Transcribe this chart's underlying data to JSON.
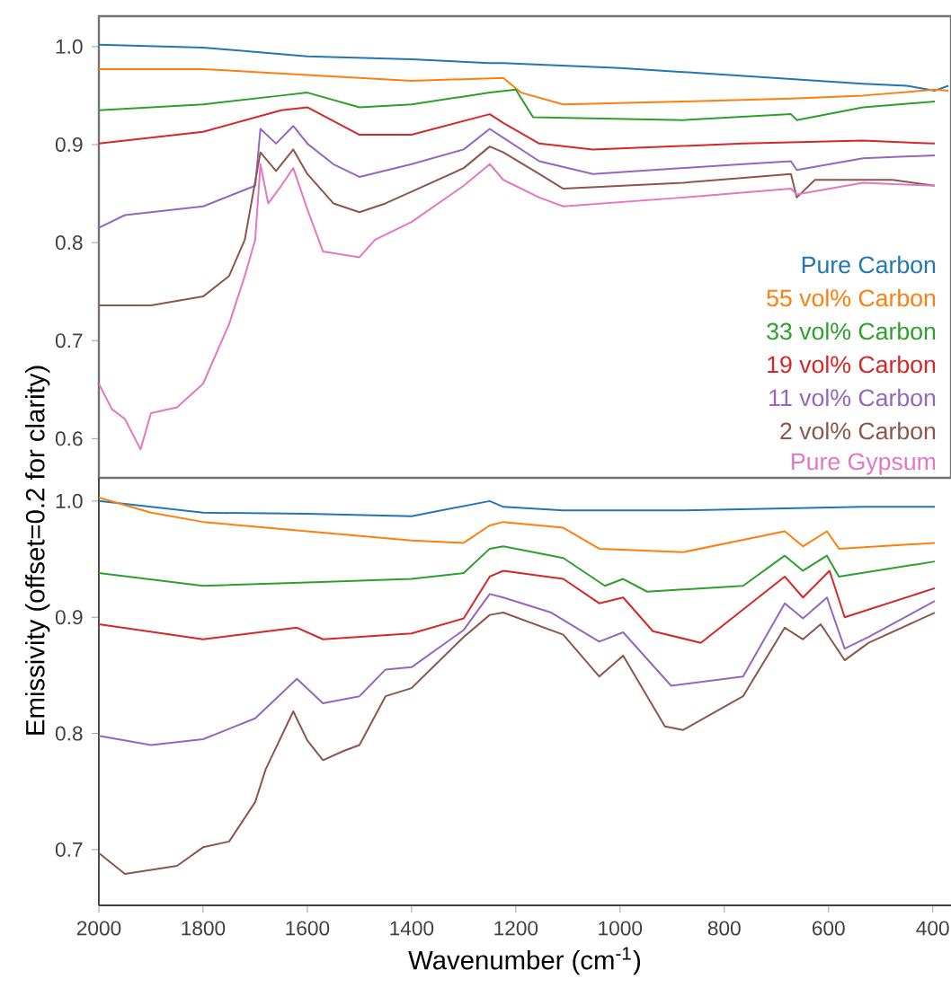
{
  "chart_data": [
    {
      "type": "line",
      "xlim": [
        2000,
        365
      ],
      "ylim": [
        0.56,
        1.031
      ],
      "yticks": [
        0.6,
        0.7,
        0.8,
        0.9,
        {
          "value": 1.0,
          "label": "1.0"
        }
      ],
      "tick_labels": "y",
      "legend": "bottom right",
      "marker": "none",
      "line_style": "solid",
      "series": [
        {
          "name": "Pure Carbon",
          "color": "#1f77b4",
          "x": [
            2000,
            1800,
            1600,
            1400,
            1250,
            1224,
            1000,
            879,
            534,
            450,
            396,
            370
          ],
          "values": [
            1.002,
            0.999,
            0.99,
            0.987,
            0.983,
            0.983,
            0.978,
            0.974,
            0.962,
            0.96,
            0.955,
            0.96
          ]
        },
        {
          "name": "55 vol% Carbon",
          "color": "#ff7f0e",
          "x": [
            2000,
            1800,
            1600,
            1400,
            1224,
            1190,
            1109,
            879,
            672,
            534,
            396,
            370
          ],
          "values": [
            0.977,
            0.977,
            0.971,
            0.965,
            0.968,
            0.953,
            0.941,
            0.944,
            0.947,
            0.95,
            0.956,
            0.955
          ]
        },
        {
          "name": "33 vol% Carbon",
          "color": "#2ca02c",
          "x": [
            2000,
            1800,
            1650,
            1600,
            1500,
            1400,
            1250,
            1200,
            1167,
            879,
            672,
            661,
            534,
            396
          ],
          "values": [
            0.935,
            0.941,
            0.95,
            0.953,
            0.938,
            0.941,
            0.953,
            0.956,
            0.928,
            0.925,
            0.931,
            0.925,
            0.938,
            0.944
          ]
        },
        {
          "name": "19 vol% Carbon",
          "color": "#d62728",
          "x": [
            2000,
            1800,
            1650,
            1600,
            1500,
            1400,
            1250,
            1224,
            1155,
            1052,
            764,
            534,
            396
          ],
          "values": [
            0.901,
            0.913,
            0.935,
            0.938,
            0.91,
            0.91,
            0.931,
            0.922,
            0.901,
            0.895,
            0.901,
            0.904,
            0.901
          ]
        },
        {
          "name": "11 vol% Carbon",
          "color": "#9467bd",
          "x": [
            2000,
            1950,
            1800,
            1700,
            1690,
            1660,
            1627,
            1600,
            1550,
            1500,
            1400,
            1300,
            1250,
            1224,
            1155,
            1052,
            764,
            672,
            661,
            534,
            396
          ],
          "values": [
            0.815,
            0.828,
            0.837,
            0.858,
            0.916,
            0.901,
            0.919,
            0.901,
            0.88,
            0.867,
            0.88,
            0.895,
            0.916,
            0.907,
            0.883,
            0.87,
            0.88,
            0.883,
            0.874,
            0.886,
            0.889
          ]
        },
        {
          "name": "2 vol% Carbon",
          "color": "#8c564b",
          "x": [
            2000,
            1900,
            1800,
            1750,
            1720,
            1690,
            1660,
            1627,
            1600,
            1550,
            1500,
            1450,
            1400,
            1300,
            1250,
            1224,
            1155,
            1109,
            879,
            672,
            661,
            626,
            477,
            396
          ],
          "values": [
            0.736,
            0.736,
            0.745,
            0.766,
            0.803,
            0.892,
            0.873,
            0.895,
            0.87,
            0.84,
            0.831,
            0.84,
            0.852,
            0.876,
            0.898,
            0.892,
            0.87,
            0.855,
            0.861,
            0.87,
            0.846,
            0.864,
            0.864,
            0.858
          ]
        },
        {
          "name": "Pure Gypsum",
          "color": "#e377c2",
          "x": [
            2000,
            1975,
            1950,
            1920,
            1900,
            1850,
            1800,
            1750,
            1720,
            1700,
            1690,
            1675,
            1650,
            1627,
            1600,
            1570,
            1500,
            1470,
            1400,
            1300,
            1250,
            1224,
            1155,
            1109,
            879,
            672,
            661,
            534,
            396
          ],
          "values": [
            0.656,
            0.63,
            0.62,
            0.589,
            0.626,
            0.632,
            0.656,
            0.717,
            0.766,
            0.803,
            0.88,
            0.84,
            0.858,
            0.876,
            0.834,
            0.791,
            0.785,
            0.803,
            0.821,
            0.858,
            0.88,
            0.864,
            0.846,
            0.837,
            0.846,
            0.855,
            0.849,
            0.861,
            0.858
          ]
        }
      ]
    },
    {
      "type": "line",
      "xlabel": "Wavenumber (cm$^{-1}$)",
      "ylabel": "Emissivity (offset=0.2 for clarity)",
      "xlim": [
        2000,
        365
      ],
      "xticks": [
        2000,
        1800,
        1600,
        1400,
        1200,
        1000,
        800,
        600,
        400
      ],
      "ylim": [
        0.652,
        1.02
      ],
      "yticks": [
        0.7,
        0.8,
        0.9,
        {
          "value": 1.0,
          "label": "1.0"
        }
      ],
      "marker": "none",
      "line_style": "solid",
      "series": [
        {
          "color": "#1f77b4",
          "x": [
            2000,
            1800,
            1600,
            1400,
            1250,
            1224,
            1109,
            879,
            534,
            396
          ],
          "values": [
            1.0,
            0.99,
            0.989,
            0.987,
            1.0,
            0.995,
            0.992,
            0.992,
            0.995,
            0.995
          ]
        },
        {
          "color": "#ff7f0e",
          "x": [
            2000,
            1900,
            1800,
            1600,
            1400,
            1300,
            1250,
            1224,
            1109,
            1040,
            879,
            684,
            649,
            603,
            580,
            396
          ],
          "values": [
            1.003,
            0.99,
            0.982,
            0.974,
            0.966,
            0.964,
            0.979,
            0.982,
            0.977,
            0.959,
            0.956,
            0.974,
            0.961,
            0.974,
            0.959,
            0.964
          ]
        },
        {
          "color": "#2ca02c",
          "x": [
            2000,
            1800,
            1600,
            1400,
            1300,
            1250,
            1224,
            1109,
            1029,
            994,
            948,
            764,
            684,
            649,
            603,
            580,
            396
          ],
          "values": [
            0.938,
            0.927,
            0.93,
            0.933,
            0.938,
            0.959,
            0.961,
            0.951,
            0.927,
            0.933,
            0.922,
            0.927,
            0.953,
            0.94,
            0.953,
            0.935,
            0.948
          ]
        },
        {
          "color": "#d62728",
          "x": [
            2000,
            1800,
            1620,
            1570,
            1400,
            1300,
            1250,
            1224,
            1109,
            1040,
            994,
            937,
            845,
            684,
            649,
            598,
            569,
            396
          ],
          "values": [
            0.894,
            0.881,
            0.891,
            0.881,
            0.886,
            0.899,
            0.935,
            0.94,
            0.933,
            0.912,
            0.917,
            0.888,
            0.878,
            0.935,
            0.917,
            0.94,
            0.9,
            0.925
          ]
        },
        {
          "color": "#9467bd",
          "x": [
            2000,
            1900,
            1800,
            1700,
            1620,
            1570,
            1500,
            1450,
            1400,
            1300,
            1250,
            1224,
            1132,
            1040,
            994,
            902,
            764,
            684,
            649,
            603,
            569,
            523,
            396
          ],
          "values": [
            0.798,
            0.79,
            0.795,
            0.813,
            0.847,
            0.826,
            0.832,
            0.855,
            0.857,
            0.889,
            0.92,
            0.917,
            0.904,
            0.879,
            0.887,
            0.841,
            0.849,
            0.912,
            0.899,
            0.917,
            0.873,
            0.883,
            0.914
          ]
        },
        {
          "color": "#8c564b",
          "x": [
            2000,
            1950,
            1850,
            1800,
            1750,
            1700,
            1680,
            1627,
            1600,
            1570,
            1530,
            1500,
            1450,
            1400,
            1300,
            1250,
            1224,
            1109,
            1040,
            994,
            914,
            879,
            764,
            684,
            649,
            615,
            569,
            523,
            396
          ],
          "values": [
            0.697,
            0.679,
            0.686,
            0.702,
            0.707,
            0.741,
            0.769,
            0.819,
            0.794,
            0.777,
            0.785,
            0.79,
            0.832,
            0.839,
            0.883,
            0.902,
            0.904,
            0.885,
            0.849,
            0.867,
            0.806,
            0.803,
            0.832,
            0.891,
            0.881,
            0.894,
            0.863,
            0.878,
            0.904
          ]
        }
      ]
    }
  ]
}
